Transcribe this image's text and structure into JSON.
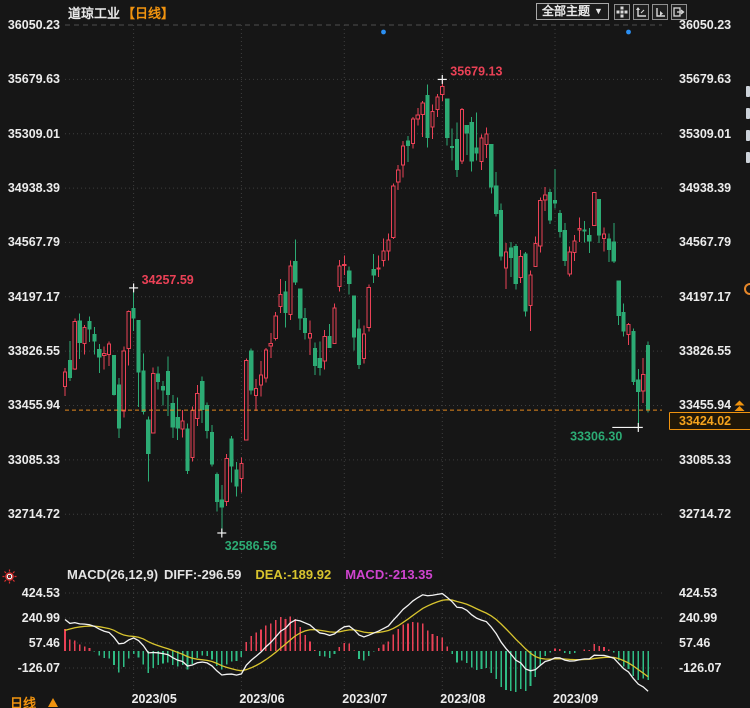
{
  "header": {
    "title": "道琼工业",
    "period_tag": "【日线】",
    "theme_dropdown_label": "全部主题",
    "theme_dropdown_caret": "▼",
    "toolbar_icons": [
      "crosshair-move-icon",
      "axis-zoom-vertical-icon",
      "axis-zoom-horizontal-icon",
      "pan-exit-icon"
    ]
  },
  "colors": {
    "up": "#ea4156",
    "down": "#2cab74",
    "macd_down": "#2fbd85",
    "diff_line": "#f2f2f2",
    "dea_line": "#d8c42e",
    "macd_label": "#cf44cf",
    "orange": "#f0930f",
    "blue_dot": "#2b8ff2",
    "text": "#ececec",
    "grid": "#3e3e3e",
    "grid_top_dash": "#4f4f4f",
    "background": "#161616"
  },
  "chart_data": {
    "type": "candlestick+macd",
    "title": "道琼工业 日线",
    "price_axis_labels": [
      "36050.23",
      "35679.63",
      "35309.01",
      "34938.39",
      "34567.79",
      "34197.17",
      "33826.55",
      "33455.94",
      "33085.33",
      "32714.72"
    ],
    "ylim": [
      32714.72,
      36050.23
    ],
    "x_labels": [
      {
        "label": "2023/05",
        "index": 14
      },
      {
        "label": "2023/06",
        "index": 36
      },
      {
        "label": "2023/07",
        "index": 57
      },
      {
        "label": "2023/08",
        "index": 77
      },
      {
        "label": "2023/09",
        "index": 100
      }
    ],
    "candles": [
      [
        33587,
        33713,
        33520,
        33685
      ],
      [
        33764,
        33896,
        33623,
        33646
      ],
      [
        33705,
        34049,
        33699,
        34030
      ],
      [
        34033,
        34082,
        33772,
        33886
      ],
      [
        33877,
        34006,
        33804,
        33987
      ],
      [
        34028,
        34064,
        33889,
        33976
      ],
      [
        33940,
        33991,
        33803,
        33897
      ],
      [
        33836,
        33875,
        33677,
        33786
      ],
      [
        33796,
        33859,
        33702,
        33809
      ],
      [
        33805,
        33891,
        33726,
        33875
      ],
      [
        33797,
        33797,
        33525,
        33531
      ],
      [
        33596,
        33645,
        33235,
        33302
      ],
      [
        33419,
        33859,
        33373,
        33826
      ],
      [
        33844,
        34104,
        33728,
        34098
      ],
      [
        34116,
        34257.59,
        33964,
        34052
      ],
      [
        34036,
        34036,
        33445,
        33685
      ],
      [
        33690,
        33812,
        33394,
        33414
      ],
      [
        33356,
        33380,
        32938,
        33128
      ],
      [
        33269,
        33714,
        33269,
        33674
      ],
      [
        33672,
        33723,
        33564,
        33619
      ],
      [
        33585,
        33622,
        33457,
        33562
      ],
      [
        33687,
        33791,
        33383,
        33531
      ],
      [
        33470,
        33529,
        33234,
        33310
      ],
      [
        33373,
        33512,
        33222,
        33301
      ],
      [
        33296,
        33424,
        33239,
        33349
      ],
      [
        33295,
        33333,
        32988,
        33012
      ],
      [
        33100,
        33449,
        33075,
        33421
      ],
      [
        33366,
        33595,
        33316,
        33536
      ],
      [
        33621,
        33653,
        33336,
        33427
      ],
      [
        33457,
        33475,
        33232,
        33287
      ],
      [
        33271,
        33324,
        33041,
        33056
      ],
      [
        32984,
        32999,
        32734,
        32800
      ],
      [
        32812,
        32913,
        32586.56,
        32764
      ],
      [
        32800,
        33124,
        32771,
        33093
      ],
      [
        33227,
        33248,
        32930,
        33043
      ],
      [
        33017,
        33072,
        32835,
        32908
      ],
      [
        32959,
        33102,
        32861,
        33061
      ],
      [
        33222,
        33775,
        33222,
        33763
      ],
      [
        33829,
        33844,
        33530,
        33563
      ],
      [
        33524,
        33637,
        33418,
        33573
      ],
      [
        33596,
        33759,
        33516,
        33665
      ],
      [
        33644,
        33847,
        33613,
        33834
      ],
      [
        33862,
        33949,
        33781,
        33877
      ],
      [
        33911,
        34093,
        33899,
        34066
      ],
      [
        34130,
        34318,
        34087,
        34212
      ],
      [
        34230,
        34304,
        33987,
        34091
      ],
      [
        34078,
        34443,
        34039,
        34408
      ],
      [
        34439,
        34589,
        34279,
        34299
      ],
      [
        34251,
        34251,
        33970,
        34053
      ],
      [
        34048,
        34119,
        33907,
        33952
      ],
      [
        33917,
        34034,
        33799,
        33947
      ],
      [
        33843,
        33887,
        33663,
        33727
      ],
      [
        33776,
        33891,
        33659,
        33715
      ],
      [
        33758,
        33972,
        33703,
        33927
      ],
      [
        33926,
        34013,
        33851,
        33853
      ],
      [
        33879,
        34153,
        33879,
        34122
      ],
      [
        34268,
        34447,
        34234,
        34408
      ],
      [
        34411,
        34479,
        34347,
        34418
      ],
      [
        34373,
        34402,
        34212,
        34289
      ],
      [
        34204,
        34204,
        33830,
        33922
      ],
      [
        33977,
        34043,
        33706,
        33735
      ],
      [
        33775,
        34000,
        33743,
        33944
      ],
      [
        33987,
        34282,
        33961,
        34261
      ],
      [
        34382,
        34489,
        34290,
        34347
      ],
      [
        34386,
        34478,
        34333,
        34395
      ],
      [
        34445,
        34593,
        34402,
        34509
      ],
      [
        34509,
        34629,
        34443,
        34585
      ],
      [
        34601,
        34970,
        34590,
        34951
      ],
      [
        34980,
        35094,
        34926,
        35061
      ],
      [
        35096,
        35261,
        35010,
        35225
      ],
      [
        35259,
        35295,
        35117,
        35228
      ],
      [
        35242,
        35423,
        35207,
        35411
      ],
      [
        35411,
        35485,
        35364,
        35438
      ],
      [
        35439,
        35531,
        35288,
        35520
      ],
      [
        35568,
        35645,
        35216,
        35283
      ],
      [
        35355,
        35509,
        35273,
        35459
      ],
      [
        35474,
        35581,
        35422,
        35560
      ],
      [
        35576,
        35679.13,
        35531,
        35631
      ],
      [
        35547,
        35547,
        35227,
        35282
      ],
      [
        35223,
        35344,
        35128,
        35216
      ],
      [
        35268,
        35387,
        35015,
        35066
      ],
      [
        35123,
        35485,
        35101,
        35473
      ],
      [
        35365,
        35369,
        35165,
        35314
      ],
      [
        35385,
        35423,
        35053,
        35123
      ],
      [
        35210,
        35453,
        35126,
        35176
      ],
      [
        35120,
        35305,
        35060,
        35281
      ],
      [
        35236,
        35353,
        35145,
        35307
      ],
      [
        35234,
        35234,
        34903,
        34946
      ],
      [
        34954,
        35048,
        34744,
        34766
      ],
      [
        34786,
        34832,
        34446,
        34475
      ],
      [
        34394,
        34563,
        34249,
        34501
      ],
      [
        34529,
        34569,
        34332,
        34464
      ],
      [
        34540,
        34557,
        34248,
        34289
      ],
      [
        34327,
        34517,
        34290,
        34473
      ],
      [
        34489,
        34502,
        34064,
        34099
      ],
      [
        34137,
        34378,
        33964,
        34347
      ],
      [
        34403,
        34607,
        34403,
        34560
      ],
      [
        34544,
        34874,
        34499,
        34853
      ],
      [
        34858,
        34947,
        34782,
        34890
      ],
      [
        34909,
        34933,
        34694,
        34722
      ],
      [
        34855,
        35070,
        34799,
        34838
      ],
      [
        34766,
        34788,
        34602,
        34642
      ],
      [
        34649,
        34700,
        34408,
        34443
      ],
      [
        34354,
        34541,
        34335,
        34501
      ],
      [
        34500,
        34620,
        34442,
        34577
      ],
      [
        34654,
        34739,
        34572,
        34664
      ],
      [
        34652,
        34713,
        34567,
        34646
      ],
      [
        34616,
        34667,
        34496,
        34576
      ],
      [
        34683,
        34911,
        34683,
        34907
      ],
      [
        34860,
        34860,
        34565,
        34618
      ],
      [
        34595,
        34670,
        34505,
        34624
      ],
      [
        34592,
        34628,
        34433,
        34518
      ],
      [
        34569,
        34700,
        34426,
        34441
      ],
      [
        34306,
        34306,
        34005,
        34070
      ],
      [
        34090,
        34152,
        33928,
        33964
      ],
      [
        33940,
        34018,
        33867,
        34007
      ],
      [
        33961,
        33980,
        33596,
        33619
      ],
      [
        33629,
        33705,
        33306.3,
        33550
      ],
      [
        33554,
        33779,
        33472,
        33666
      ],
      [
        33866,
        33893,
        33407,
        33424.02
      ]
    ],
    "annotations": [
      {
        "index": 14,
        "label": "34257.59",
        "type": "high"
      },
      {
        "index": 32,
        "label": "32586.56",
        "type": "low"
      },
      {
        "index": 77,
        "label": "35679.13",
        "type": "high"
      },
      {
        "index": 117,
        "label": "33306.30",
        "type": "low-elbow"
      }
    ],
    "current_price": "33424.02",
    "event_dot_indices": [
      65,
      115
    ],
    "macd": {
      "params_label": "MACD(26,12,9)",
      "diff_label": "DIFF:-296.59",
      "dea_label": "DEA:-189.92",
      "macd_label": "MACD:-213.35",
      "axis_labels": [
        "424.53",
        "240.99",
        "57.46",
        "-126.07"
      ],
      "seed": {
        "ema12_offset": 130,
        "ema26_offset": -130,
        "dea": 130
      }
    }
  },
  "bottom": {
    "period_label": "日线"
  },
  "right_edge": {
    "fragment_count": 4,
    "icon": "orange-ring-fragment"
  }
}
